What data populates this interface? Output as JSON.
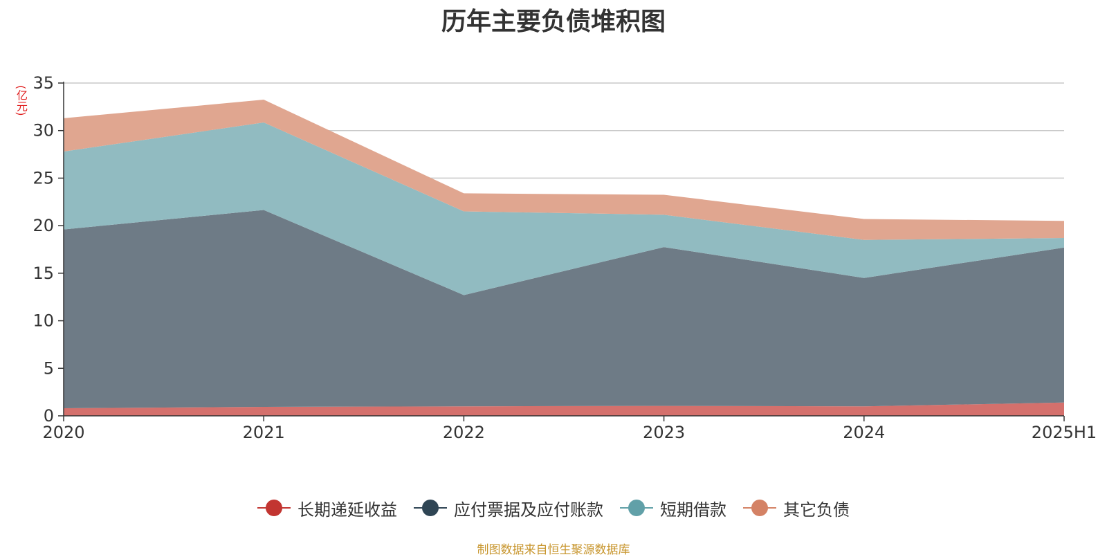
{
  "chart_data": {
    "type": "area",
    "stacked": true,
    "title": "历年主要负债堆积图",
    "unit_label": "(亿元)",
    "x": [
      "2020",
      "2021",
      "2022",
      "2023",
      "2024",
      "2025H1"
    ],
    "ylim": [
      0,
      35
    ],
    "yticks": [
      "0",
      "5",
      "10",
      "15",
      "20",
      "25",
      "30",
      "35"
    ],
    "grid": true,
    "legend_position": "bottom",
    "series": [
      {
        "name": "长期递延收益",
        "color": "#c23531",
        "fill": "#d4706c",
        "values": [
          0.8,
          0.95,
          1.0,
          1.05,
          1.0,
          1.4
        ]
      },
      {
        "name": "应付票据及应付账款",
        "color": "#2f4554",
        "fill": "#6e7b86",
        "values": [
          18.8,
          20.7,
          11.7,
          16.7,
          13.5,
          16.3
        ]
      },
      {
        "name": "短期借款",
        "color": "#61a0a8",
        "fill": "#91bbc1",
        "values": [
          8.2,
          9.2,
          8.8,
          3.4,
          4.0,
          1.0
        ]
      },
      {
        "name": "其它负债",
        "color": "#d48265",
        "fill": "#e0a690",
        "values": [
          3.5,
          2.4,
          1.9,
          2.1,
          2.2,
          1.8
        ]
      }
    ]
  },
  "footer": {
    "source": "制图数据来自恒生聚源数据库"
  }
}
